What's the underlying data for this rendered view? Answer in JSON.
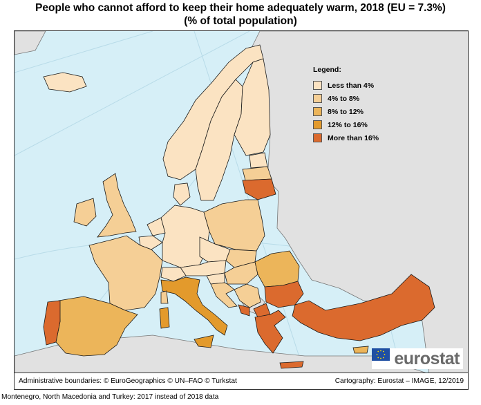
{
  "title": {
    "line1": "People who cannot afford to keep their home adequately warm, 2018 (EU = 7.3%)",
    "line2": "(% of total population)"
  },
  "legend": {
    "title": "Legend:",
    "items": [
      {
        "label": "Less than 4%",
        "color": "#fbe3c2"
      },
      {
        "label": "4% to 8%",
        "color": "#f5cf96"
      },
      {
        "label": "8% to 12%",
        "color": "#ecb55a"
      },
      {
        "label": "12% to 16%",
        "color": "#e39a2c"
      },
      {
        "label": "More than 16%",
        "color": "#db6a2e"
      }
    ]
  },
  "colors": {
    "sea": "#d6eff7",
    "non_eu": "#e1e1e1",
    "border": "#1a1a1a",
    "logo_text": "#6a6a6a",
    "eu_flag": "#1f4fa3",
    "eu_stars": "#ffdd00"
  },
  "logo": {
    "text": "eurostat"
  },
  "footer": {
    "left": "Administrative boundaries: © EuroGeographics © UN–FAO © Turkstat",
    "right": "Cartography: Eurostat – IMAGE, 12/2019"
  },
  "note": "Montenegro, North Macedonia and Turkey: 2017 instead of 2018 data"
}
